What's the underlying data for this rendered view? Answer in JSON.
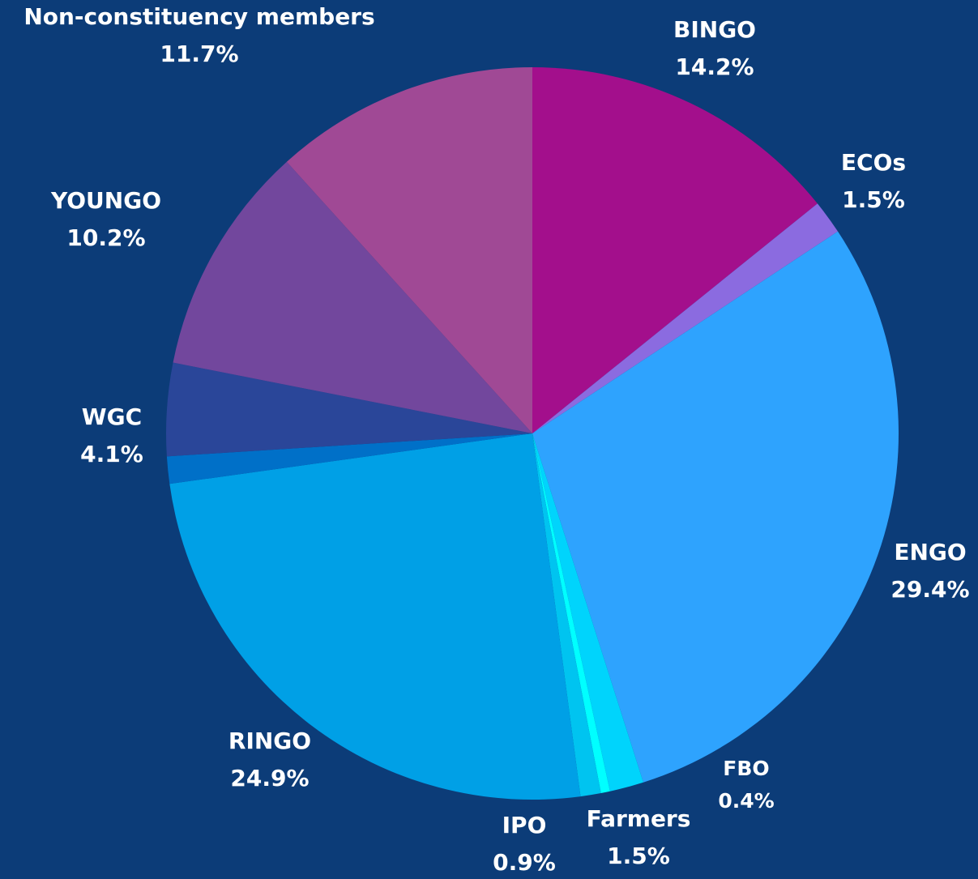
{
  "chart_data": {
    "type": "pie",
    "categories": [
      "BINGO",
      "ECOs",
      "ENGO",
      "Farmers",
      "FBO",
      "IPO",
      "RINGO",
      null,
      "WGC",
      "YOUNGO",
      "Non-constituency members"
    ],
    "values": [
      14.2,
      1.5,
      29.4,
      1.5,
      0.4,
      0.9,
      24.9,
      1.2,
      4.1,
      10.2,
      11.7
    ],
    "value_labels": [
      "14.2%",
      "1.5%",
      "29.4%",
      "1.5%",
      "0.4%",
      "0.9%",
      "24.9%",
      null,
      "4.1%",
      "10.2%",
      "11.7%"
    ],
    "colors": [
      "#a30f8c",
      "#8b6be0",
      "#2ea3fe",
      "#00d4fc",
      "#00ffff",
      "#00c4f0",
      "#00a0e6",
      "#0070c8",
      "#2a4699",
      "#72479d",
      "#a04995"
    ]
  }
}
